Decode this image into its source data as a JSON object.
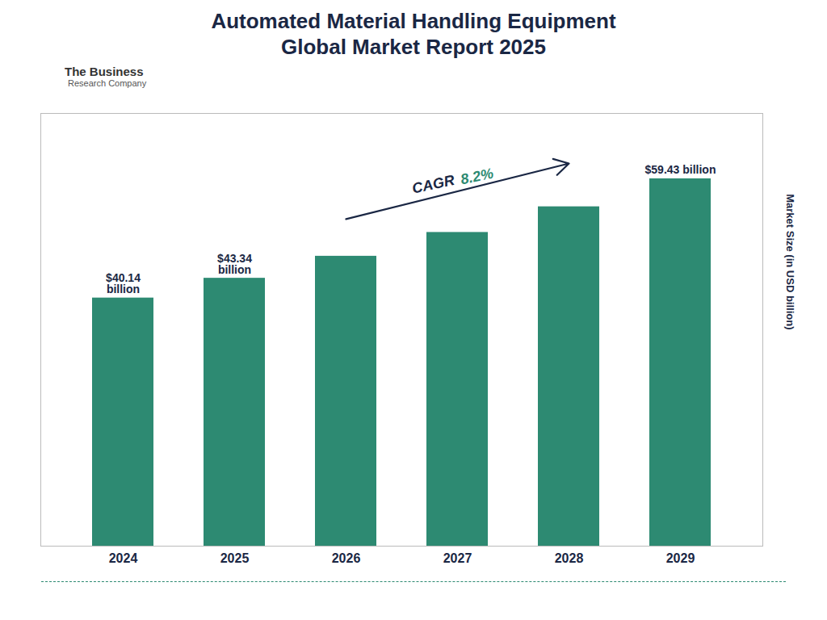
{
  "chart_data": {
    "type": "bar",
    "title": "Automated Material Handling Equipment",
    "subtitle": "Global Market Report 2025",
    "ylabel": "Market Size (in USD billion)",
    "categories": [
      "2024",
      "2025",
      "2026",
      "2027",
      "2028",
      "2029"
    ],
    "values": [
      40.14,
      43.34,
      46.9,
      50.75,
      54.9,
      59.43
    ],
    "value_labels": [
      "$40.14\nbillion",
      "$43.34\nbillion",
      null,
      null,
      null,
      "$59.43 billion"
    ],
    "data_labels": true,
    "color": "#2d8a72",
    "ylim": [
      0,
      70
    ],
    "tick_labels": "x",
    "grid": false,
    "annotations": [
      {
        "text": "CAGR",
        "color": "#1a2744"
      },
      {
        "text": "8.2%",
        "color": "#2d8a72"
      },
      {
        "text": "The Business"
      },
      {
        "text": "Research Company"
      }
    ]
  }
}
